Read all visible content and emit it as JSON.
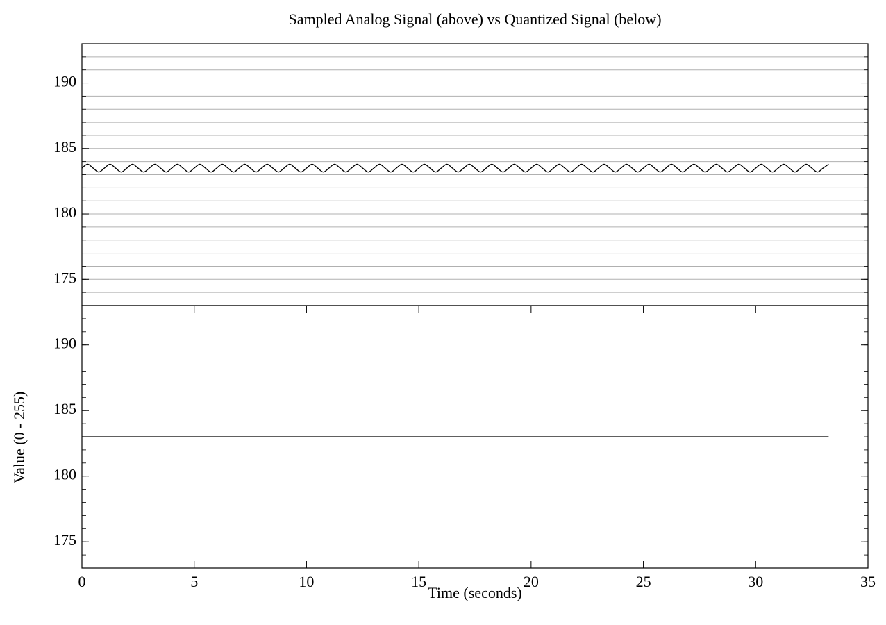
{
  "chart_data": [
    {
      "type": "line",
      "title": "Sampled Analog Signal (above) vs Quantized Signal (below)",
      "x": [
        0,
        0.25,
        0.5,
        0.75,
        1,
        1.25,
        1.5,
        1.75,
        2,
        2.25,
        2.5,
        2.75,
        3,
        3.25,
        3.5,
        3.75,
        4,
        4.25,
        4.5,
        4.75,
        5,
        5.25,
        5.5,
        5.75,
        6,
        6.25,
        6.5,
        6.75,
        7,
        7.25,
        7.5,
        7.75,
        8,
        8.25,
        8.5,
        8.75,
        9,
        9.25,
        9.5,
        9.75,
        10,
        10.25,
        10.5,
        10.75,
        11,
        11.25,
        11.5,
        11.75,
        12,
        12.25,
        12.5,
        12.75,
        13,
        13.25,
        13.5,
        13.75,
        14,
        14.25,
        14.5,
        14.75,
        15,
        15.25,
        15.5,
        15.75,
        16,
        16.25,
        16.5,
        16.75,
        17,
        17.25,
        17.5,
        17.75,
        18,
        18.25,
        18.5,
        18.75,
        19,
        19.25,
        19.5,
        19.75,
        20,
        20.25,
        20.5,
        20.75,
        21,
        21.25,
        21.5,
        21.75,
        22,
        22.25,
        22.5,
        22.75,
        23,
        23.25,
        23.5,
        23.75,
        24,
        24.25,
        24.5,
        24.75,
        25,
        25.25,
        25.5,
        25.75,
        26,
        26.25,
        26.5,
        26.75,
        27,
        27.25,
        27.5,
        27.75,
        28,
        28.25,
        28.5,
        28.75,
        29,
        29.25,
        29.5,
        29.75,
        30,
        30.25,
        30.5,
        30.75,
        31,
        31.25,
        31.5,
        31.75,
        32,
        32.25,
        32.5,
        32.75,
        33,
        33.25
      ],
      "series": [
        {
          "color": "#000000",
          "values": [
            183.5,
            183.8,
            183.5,
            183.2,
            183.5,
            183.8,
            183.5,
            183.2,
            183.5,
            183.8,
            183.5,
            183.2,
            183.5,
            183.8,
            183.5,
            183.2,
            183.5,
            183.8,
            183.5,
            183.2,
            183.5,
            183.8,
            183.5,
            183.2,
            183.5,
            183.8,
            183.5,
            183.2,
            183.5,
            183.8,
            183.5,
            183.2,
            183.5,
            183.8,
            183.5,
            183.2,
            183.5,
            183.8,
            183.5,
            183.2,
            183.5,
            183.8,
            183.5,
            183.2,
            183.5,
            183.8,
            183.5,
            183.2,
            183.5,
            183.8,
            183.5,
            183.2,
            183.5,
            183.8,
            183.5,
            183.2,
            183.5,
            183.8,
            183.5,
            183.2,
            183.5,
            183.8,
            183.5,
            183.2,
            183.5,
            183.8,
            183.5,
            183.2,
            183.5,
            183.8,
            183.5,
            183.2,
            183.5,
            183.8,
            183.5,
            183.2,
            183.5,
            183.8,
            183.5,
            183.2,
            183.5,
            183.8,
            183.5,
            183.2,
            183.5,
            183.8,
            183.5,
            183.2,
            183.5,
            183.8,
            183.5,
            183.2,
            183.5,
            183.8,
            183.5,
            183.2,
            183.5,
            183.8,
            183.5,
            183.2,
            183.5,
            183.8,
            183.5,
            183.2,
            183.5,
            183.8,
            183.5,
            183.2,
            183.5,
            183.8,
            183.5,
            183.2,
            183.5,
            183.8,
            183.5,
            183.2,
            183.5,
            183.8,
            183.5,
            183.2,
            183.5,
            183.8,
            183.5,
            183.2,
            183.5,
            183.8,
            183.5,
            183.2,
            183.5,
            183.8,
            183.5,
            183.2,
            183.5,
            183.8
          ]
        }
      ],
      "xlim": [
        0,
        35
      ],
      "ylim": [
        173,
        193
      ],
      "yticks": [
        175,
        180,
        185,
        190
      ],
      "minor_yticks": [
        173,
        174,
        175,
        176,
        177,
        178,
        179,
        180,
        181,
        182,
        183,
        184,
        185,
        186,
        187,
        188,
        189,
        190,
        191,
        192,
        193
      ],
      "grid": true
    },
    {
      "type": "line",
      "x_label": "Time (seconds)",
      "y_label": "Value (0 - 255)",
      "x": [
        0,
        33.25
      ],
      "series": [
        {
          "color": "#000000",
          "values": [
            183,
            183
          ]
        }
      ],
      "xlim": [
        0,
        35
      ],
      "xticks": [
        0,
        5,
        10,
        15,
        20,
        25,
        30,
        35
      ],
      "ylim": [
        173,
        193
      ],
      "yticks": [
        175,
        180,
        185,
        190
      ],
      "minor_yticks": [
        173,
        174,
        175,
        176,
        177,
        178,
        179,
        180,
        181,
        182,
        183,
        184,
        185,
        186,
        187,
        188,
        189,
        190,
        191,
        192,
        193
      ],
      "grid": false
    }
  ]
}
